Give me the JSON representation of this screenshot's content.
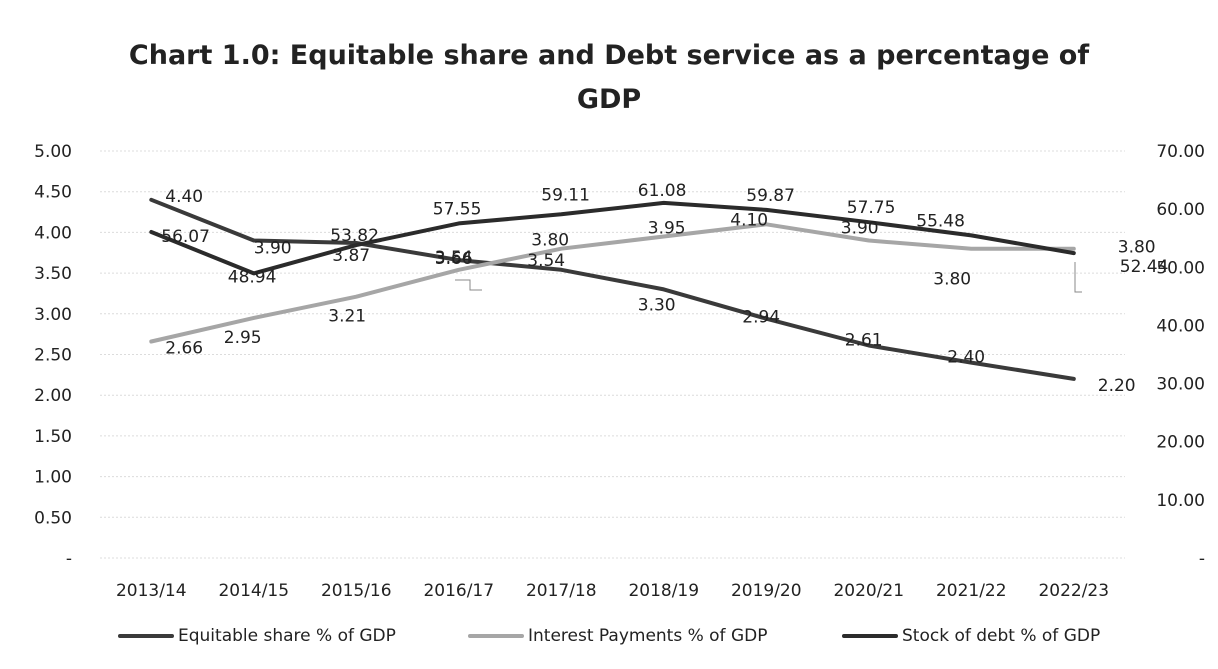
{
  "chart_data": {
    "type": "line",
    "title": "Chart 1.0: Equitable share and Debt service as a percentage of GDP",
    "title_lines": [
      "Chart 1.0: Equitable share and Debt service as a percentage of",
      "GDP"
    ],
    "categories": [
      "2013/14",
      "2014/15",
      "2015/16",
      "2016/17",
      "2017/18",
      "2018/19",
      "2019/20",
      "2020/21",
      "2021/22",
      "2022/23"
    ],
    "y_left": {
      "ticks": [
        "-",
        "0.50",
        "1.00",
        "1.50",
        "2.00",
        "2.50",
        "3.00",
        "3.50",
        "4.00",
        "4.50",
        "5.00"
      ],
      "ylim": [
        0,
        5
      ]
    },
    "y_right": {
      "ticks": [
        "-",
        "10.00",
        "20.00",
        "30.00",
        "40.00",
        "50.00",
        "60.00",
        "70.00"
      ],
      "ylim": [
        0,
        70
      ]
    },
    "grid": true,
    "legend_position": "bottom",
    "series": [
      {
        "name": "Equitable share % of GDP",
        "axis": "left",
        "color": "#3a3a3a",
        "values": [
          4.4,
          3.9,
          3.87,
          3.66,
          3.54,
          3.3,
          2.94,
          2.61,
          2.4,
          2.2
        ],
        "labels": [
          "4.40",
          "3.90",
          "3.87",
          "3.66",
          "3.54",
          "3.30",
          "2.94",
          "2.61",
          "2.40",
          "2.20"
        ]
      },
      {
        "name": "Interest Payments % of GDP",
        "axis": "left",
        "color": "#a6a6a6",
        "values": [
          2.66,
          2.95,
          3.21,
          3.54,
          3.8,
          3.95,
          4.1,
          3.9,
          3.8,
          3.8
        ],
        "labels": [
          "2.66",
          "2.95",
          "3.21",
          "3.54",
          "3.80",
          "3.95",
          "4.10",
          "3.90",
          "3.80",
          "3.80"
        ]
      },
      {
        "name": "Stock of debt % of GDP",
        "axis": "right",
        "color": "#2b2b2b",
        "values": [
          56.07,
          48.94,
          53.82,
          57.55,
          59.11,
          61.08,
          59.87,
          57.75,
          55.48,
          52.44
        ],
        "labels": [
          "56.07",
          "48.94",
          "53.82",
          "57.55",
          "59.11",
          "61.08",
          "59.87",
          "57.75",
          "55.48",
          "52.44"
        ]
      }
    ]
  }
}
